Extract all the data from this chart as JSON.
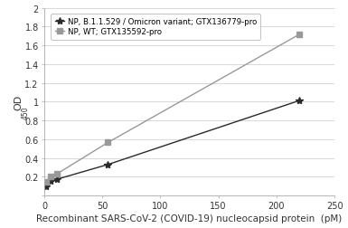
{
  "series": [
    {
      "label": "NP, B.1.1.529 / Omicron variant; GTX136779-pro",
      "x": [
        1.37,
        5.49,
        10.97,
        54.86,
        219.45
      ],
      "y": [
        0.098,
        0.155,
        0.173,
        0.33,
        1.01
      ],
      "color": "#2a2a2a",
      "marker": "*",
      "markersize": 6,
      "linewidth": 1.0
    },
    {
      "label": "NP, WT; GTX135592-pro",
      "x": [
        1.37,
        5.49,
        10.97,
        54.86,
        219.45
      ],
      "y": [
        0.148,
        0.198,
        0.23,
        0.565,
        1.715
      ],
      "color": "#999999",
      "marker": "s",
      "markersize": 4.5,
      "linewidth": 1.0
    }
  ],
  "xlabel": "Recombinant SARS-CoV-2 (COVID-19) nucleocapsid protein  (pM)",
  "ylabel": "OD",
  "ylabel_sub": "450",
  "xlim": [
    0,
    250
  ],
  "ylim": [
    0,
    2.0
  ],
  "xticks": [
    0,
    50,
    100,
    150,
    200,
    250
  ],
  "yticks": [
    0,
    0.2,
    0.4,
    0.6,
    0.8,
    1.0,
    1.2,
    1.4,
    1.6,
    1.8,
    2.0
  ],
  "ytick_labels": [
    "",
    "0.2",
    "0.4",
    "0.6",
    "0.8",
    "1",
    "1.2",
    "1.4",
    "1.6",
    "1.8",
    "2"
  ],
  "background_color": "#ffffff",
  "plot_bg_color": "#ffffff",
  "grid_color": "#d8d8d8",
  "legend_fontsize": 6.2,
  "xlabel_fontsize": 7.5,
  "ylabel_fontsize": 8,
  "tick_fontsize": 7
}
